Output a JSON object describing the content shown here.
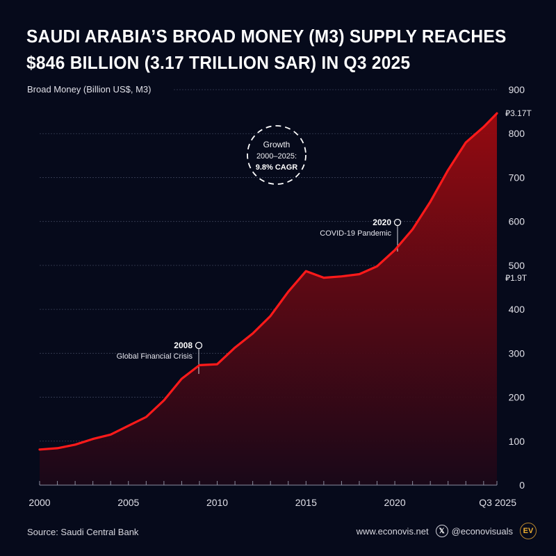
{
  "title": {
    "line1": "Saudi Arabia’s Broad Money (M3) Supply Reaches",
    "line2": "$846 Billion (3.17 Trillion SAR) in Q3 2025"
  },
  "colors": {
    "background": "#060a1b",
    "line": "#ff1a1a",
    "area_top": "#9c0a10",
    "area_bottom": "#1a0818",
    "grid": "#3a4058",
    "text": "#e8e8ee"
  },
  "chart_data": {
    "type": "area",
    "title": "Saudi Arabia’s Broad Money (M3) Supply Reaches $846 Billion (3.17 Trillion SAR) in Q3 2025",
    "ylabel": "Broad Money (Billion US$, M3)",
    "xlabel": "",
    "xlim": [
      2000,
      2025.75
    ],
    "ylim": [
      0,
      900
    ],
    "yticks": [
      0,
      100,
      200,
      300,
      400,
      500,
      600,
      700,
      800,
      900
    ],
    "xtick_labels": [
      {
        "x": 2000,
        "label": "2000"
      },
      {
        "x": 2005,
        "label": "2005"
      },
      {
        "x": 2010,
        "label": "2010"
      },
      {
        "x": 2015,
        "label": "2015"
      },
      {
        "x": 2020,
        "label": "2020"
      },
      {
        "x": 2025.75,
        "label": "Q3 2025"
      }
    ],
    "grid": true,
    "series": [
      {
        "name": "Broad Money (M3)",
        "x": [
          2000,
          2001,
          2002,
          2003,
          2004,
          2005,
          2006,
          2007,
          2008,
          2009,
          2010,
          2011,
          2012,
          2013,
          2014,
          2015,
          2016,
          2017,
          2018,
          2019,
          2020,
          2021,
          2022,
          2023,
          2024,
          2025,
          2025.75
        ],
        "values": [
          81,
          84,
          92,
          105,
          115,
          135,
          155,
          193,
          242,
          273,
          275,
          313,
          345,
          385,
          440,
          487,
          472,
          475,
          480,
          498,
          535,
          582,
          645,
          717,
          780,
          815,
          846
        ]
      }
    ],
    "secondary_labels": [
      {
        "value": 846,
        "label": "3.17T",
        "currency_symbol": "⃁"
      },
      {
        "value": 500,
        "label": "1.9T",
        "currency_symbol": "⃁"
      }
    ],
    "annotations": [
      {
        "x": 2009,
        "year": "2008",
        "text": "Global Financial Crisis"
      },
      {
        "x": 2020,
        "year": "2020",
        "text": "COVID-19 Pandemic"
      }
    ],
    "callout": {
      "line1": "Growth",
      "line2": "2000–2025:",
      "line3": "9.8% CAGR"
    }
  },
  "footer": {
    "source": "Source: Saudi Central Bank",
    "website": "www.econovis.net",
    "social_handle": "@econovisuals",
    "social_icon": "x-logo-icon",
    "logo_text": "EV"
  }
}
